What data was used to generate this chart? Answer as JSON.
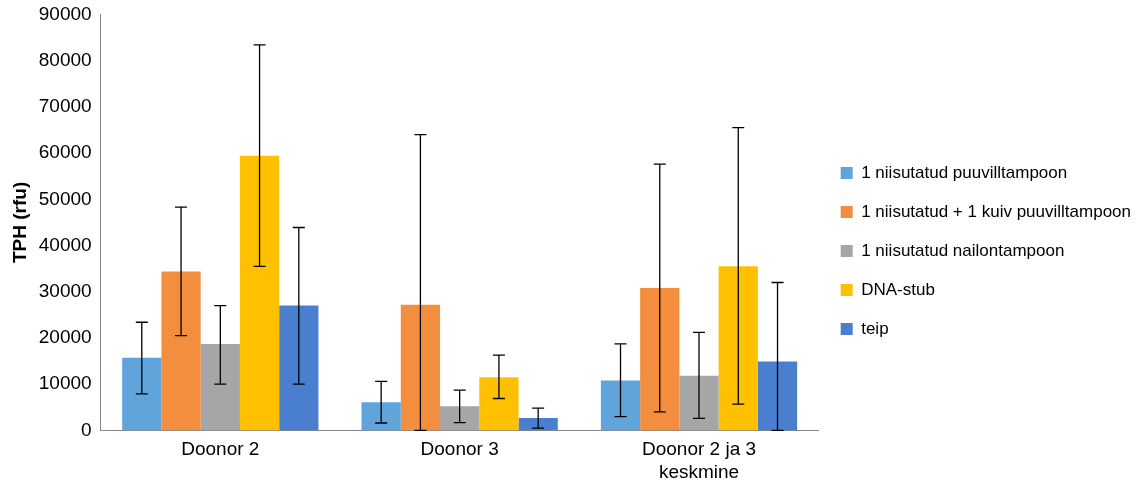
{
  "chart_data": {
    "type": "bar",
    "ylabel": "TPH (rfu)",
    "categories": [
      "Doonor 2",
      "Doonor 3",
      "Doonor 2 ja 3 keskmine"
    ],
    "series": [
      {
        "name": "1 niisutatud puuvilltampoon",
        "color": "#5fa5dc",
        "values": [
          15700,
          6100,
          10800
        ],
        "errors": [
          [
            7900,
            23400
          ],
          [
            1600,
            10600
          ],
          [
            3000,
            18700
          ]
        ]
      },
      {
        "name": "1 niisutatud + 1 kuiv puuvilltampoon",
        "color": "#f28e3e",
        "values": [
          34400,
          27200,
          30800
        ],
        "errors": [
          [
            20500,
            48300
          ],
          [
            0,
            64000
          ],
          [
            4000,
            57600
          ]
        ]
      },
      {
        "name": "1 niisutatud nailontampoon",
        "color": "#a6a6a6",
        "values": [
          18700,
          5200,
          11800
        ],
        "errors": [
          [
            10000,
            27000
          ],
          [
            1700,
            8700
          ],
          [
            2600,
            21200
          ]
        ]
      },
      {
        "name": "DNA-stub",
        "color": "#ffc000",
        "values": [
          59400,
          11500,
          35500
        ],
        "errors": [
          [
            35500,
            83400
          ],
          [
            6900,
            16300
          ],
          [
            5700,
            65500
          ]
        ]
      },
      {
        "name": "teip",
        "color": "#4a7fd0",
        "values": [
          27000,
          2700,
          14900
        ],
        "errors": [
          [
            10000,
            43900
          ],
          [
            500,
            4800
          ],
          [
            0,
            32000
          ]
        ]
      }
    ],
    "ylim": [
      0,
      90000
    ],
    "yticks": [
      0,
      10000,
      20000,
      30000,
      40000,
      50000,
      60000,
      70000,
      80000,
      90000
    ],
    "grid": false,
    "legend": "right"
  }
}
